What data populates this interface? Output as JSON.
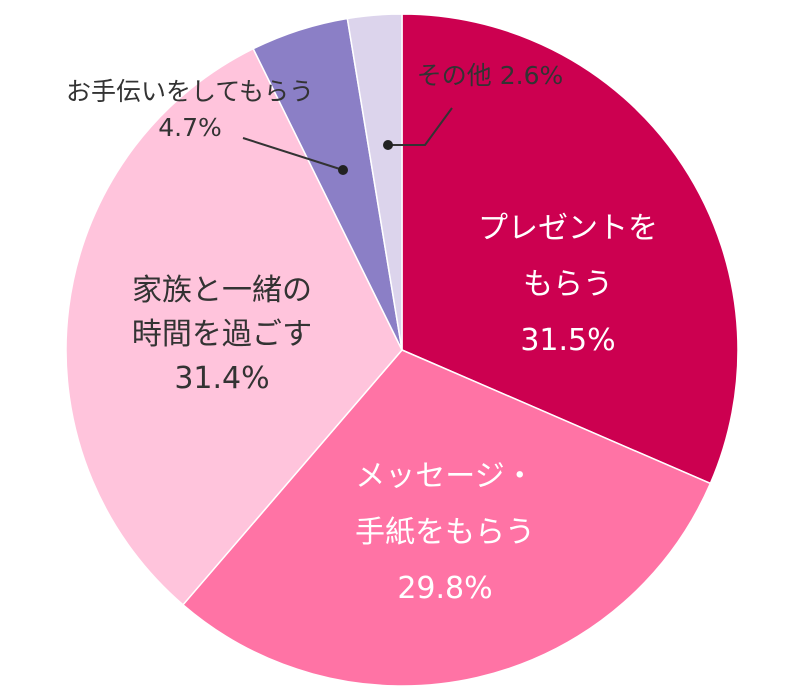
{
  "chart_data": {
    "type": "pie",
    "slices": [
      {
        "label_lines": [
          "プレゼントを",
          "もらう"
        ],
        "value": 31.5,
        "value_text": "31.5%",
        "color": "#cc0050",
        "text_color": "#ffffff",
        "label_inside": true
      },
      {
        "label_lines": [
          "メッセージ・",
          "手紙をもらう"
        ],
        "value": 29.8,
        "value_text": "29.8%",
        "color": "#ff73a5",
        "text_color": "#ffffff",
        "label_inside": true
      },
      {
        "label_lines": [
          "家族と一緒の",
          "時間を過ごす"
        ],
        "value": 31.4,
        "value_text": "31.4%",
        "color": "#ffc4dc",
        "text_color": "#333333",
        "label_inside": true
      },
      {
        "label_lines": [
          "お手伝いをしてもらう"
        ],
        "value": 4.7,
        "value_text": "4.7%",
        "color": "#8b7fc6",
        "text_color": "#333333",
        "label_inside": false
      },
      {
        "label_lines": [
          "その他"
        ],
        "value": 2.6,
        "value_text": "2.6%",
        "color": "#dcd4ec",
        "text_color": "#333333",
        "label_inside": false
      }
    ]
  }
}
